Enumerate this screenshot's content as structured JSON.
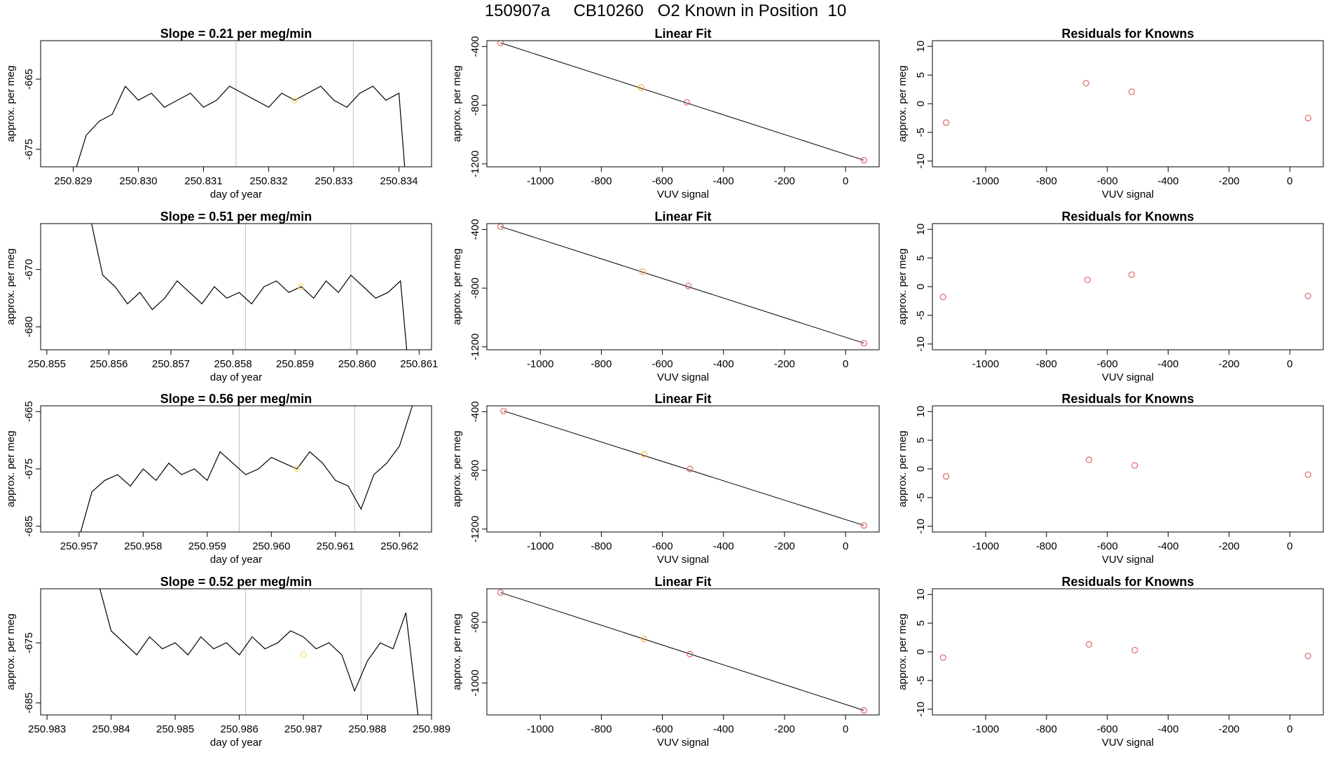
{
  "title": "150907a     CB10260   O2 Known in Position  10",
  "colors": {
    "frame": "#000000",
    "line": "#000000",
    "vline": "#bebebe",
    "known_point": "#e06666",
    "sample_point": "#f5b041",
    "yellow_marker": "#ffd966"
  },
  "chart_data": [
    {
      "type": "line",
      "title": "Slope =  0.21  per meg/min",
      "xlabel": "day of year",
      "ylabel": "approx. per meg",
      "xlim": [
        250.8285,
        250.8345
      ],
      "ylim": [
        -677.5,
        -659.5
      ],
      "xticks": [
        250.829,
        250.83,
        250.831,
        250.832,
        250.833,
        250.834
      ],
      "xtick_labels": [
        "250.829",
        "250.830",
        "250.831",
        "250.832",
        "250.833",
        "250.834"
      ],
      "yticks": [
        -665,
        -675
      ],
      "ytick_labels": [
        "-665",
        "-675"
      ],
      "vlines": [
        250.8315,
        250.8333
      ],
      "marker": {
        "x": 250.8324,
        "y": -668.0
      },
      "series": [
        {
          "x": [
            250.829,
            250.8292,
            250.8294,
            250.8296,
            250.8298,
            250.83,
            250.8302,
            250.8304,
            250.8306,
            250.8308,
            250.831,
            250.8312,
            250.8314,
            250.8316,
            250.8318,
            250.832,
            250.8322,
            250.8324,
            250.8326,
            250.8328,
            250.833,
            250.8332,
            250.8334,
            250.8336,
            250.8338,
            250.834,
            250.8341
          ],
          "y": [
            -679,
            -673,
            -671,
            -670,
            -666,
            -668,
            -667,
            -669,
            -668,
            -667,
            -669,
            -668,
            -666,
            -667,
            -668,
            -669,
            -667,
            -668,
            -667,
            -666,
            -668,
            -669,
            -667,
            -666,
            -668,
            -667,
            -679
          ]
        }
      ]
    },
    {
      "type": "scatter",
      "title": "Linear Fit",
      "xlabel": "VUV signal",
      "ylabel": "approx. per meg",
      "xlim": [
        -1175,
        110
      ],
      "ylim": [
        -1220,
        -360
      ],
      "xticks": [
        -1000,
        -800,
        -600,
        -400,
        -200,
        0
      ],
      "xtick_labels": [
        "-1000",
        "-800",
        "-600",
        "-400",
        "-200",
        "0"
      ],
      "yticks": [
        -400,
        -800,
        -1200
      ],
      "ytick_labels": [
        "-400",
        "-800",
        "-1200"
      ],
      "fit_line": {
        "x": [
          -1130,
          60
        ],
        "y": [
          -375,
          -1175
        ]
      },
      "points": {
        "x": [
          -1130,
          -670,
          -520,
          60
        ],
        "y": [
          -375,
          -680,
          -780,
          -1175
        ],
        "kind": [
          "known",
          "sample",
          "known",
          "known"
        ]
      }
    },
    {
      "type": "scatter",
      "title": "Residuals for Knowns",
      "xlabel": "VUV signal",
      "ylabel": "approx. per meg",
      "xlim": [
        -1175,
        110
      ],
      "ylim": [
        -11,
        11
      ],
      "xticks": [
        -1000,
        -800,
        -600,
        -400,
        -200,
        0
      ],
      "xtick_labels": [
        "-1000",
        "-800",
        "-600",
        "-400",
        "-200",
        "0"
      ],
      "yticks": [
        10,
        5,
        0,
        -5,
        -10
      ],
      "ytick_labels": [
        "10",
        "5",
        "0",
        "-5",
        "-10"
      ],
      "points": {
        "x": [
          -1130,
          -670,
          -520,
          60
        ],
        "y": [
          -3.3,
          3.6,
          2.1,
          -2.5
        ]
      }
    },
    {
      "type": "line",
      "title": "Slope =  0.51  per meg/min",
      "xlabel": "day of year",
      "ylabel": "approx. per meg",
      "xlim": [
        250.8549,
        250.8612
      ],
      "ylim": [
        -684,
        -662
      ],
      "xticks": [
        250.855,
        250.856,
        250.857,
        250.858,
        250.859,
        250.86,
        250.861
      ],
      "xtick_labels": [
        "250.855",
        "250.856",
        "250.857",
        "250.858",
        "250.859",
        "250.860",
        "250.861"
      ],
      "yticks": [
        -670,
        -680
      ],
      "ytick_labels": [
        "-670",
        "-680"
      ],
      "vlines": [
        250.8582,
        250.8599
      ],
      "marker": {
        "x": 250.8591,
        "y": -673.0
      },
      "series": [
        {
          "x": [
            250.8557,
            250.8559,
            250.8561,
            250.8563,
            250.8565,
            250.8567,
            250.8569,
            250.8571,
            250.8573,
            250.8575,
            250.8577,
            250.8579,
            250.8581,
            250.8583,
            250.8585,
            250.8587,
            250.8589,
            250.8591,
            250.8593,
            250.8595,
            250.8597,
            250.8599,
            250.8601,
            250.8603,
            250.8605,
            250.8607,
            250.8608
          ],
          "y": [
            -661,
            -671,
            -673,
            -676,
            -674,
            -677,
            -675,
            -672,
            -674,
            -676,
            -673,
            -675,
            -674,
            -676,
            -673,
            -672,
            -674,
            -673,
            -675,
            -672,
            -674,
            -671,
            -673,
            -675,
            -674,
            -672,
            -684
          ]
        }
      ]
    },
    {
      "type": "scatter",
      "title": "Linear Fit",
      "xlabel": "VUV signal",
      "ylabel": "approx. per meg",
      "xlim": [
        -1175,
        110
      ],
      "ylim": [
        -1220,
        -360
      ],
      "xticks": [
        -1000,
        -800,
        -600,
        -400,
        -200,
        0
      ],
      "xtick_labels": [
        "-1000",
        "-800",
        "-600",
        "-400",
        "-200",
        "0"
      ],
      "yticks": [
        -400,
        -800,
        -1200
      ],
      "ytick_labels": [
        "-400",
        "-800",
        "-1200"
      ],
      "fit_line": {
        "x": [
          -1130,
          60
        ],
        "y": [
          -380,
          -1175
        ]
      },
      "points": {
        "x": [
          -1130,
          -665,
          -515,
          60
        ],
        "y": [
          -380,
          -688,
          -785,
          -1175
        ],
        "kind": [
          "known",
          "sample",
          "known",
          "known"
        ]
      }
    },
    {
      "type": "scatter",
      "title": "Residuals for Knowns",
      "xlabel": "VUV signal",
      "ylabel": "approx. per meg",
      "xlim": [
        -1175,
        110
      ],
      "ylim": [
        -11,
        11
      ],
      "xticks": [
        -1000,
        -800,
        -600,
        -400,
        -200,
        0
      ],
      "xtick_labels": [
        "-1000",
        "-800",
        "-600",
        "-400",
        "-200",
        "0"
      ],
      "yticks": [
        10,
        5,
        0,
        -5,
        -10
      ],
      "ytick_labels": [
        "10",
        "5",
        "0",
        "-5",
        "-10"
      ],
      "points": {
        "x": [
          -1140,
          -665,
          -520,
          60
        ],
        "y": [
          -1.8,
          1.2,
          2.1,
          -1.6
        ]
      }
    },
    {
      "type": "line",
      "title": "Slope =  0.56  per meg/min",
      "xlabel": "day of year",
      "ylabel": "approx. per meg",
      "xlim": [
        250.9564,
        250.9625
      ],
      "ylim": [
        -686,
        -664
      ],
      "xticks": [
        250.957,
        250.958,
        250.959,
        250.96,
        250.961,
        250.962
      ],
      "xtick_labels": [
        "250.957",
        "250.958",
        "250.959",
        "250.960",
        "250.961",
        "250.962"
      ],
      "yticks": [
        -665,
        -675,
        -685
      ],
      "ytick_labels": [
        "-665",
        "-675",
        "-685"
      ],
      "vlines": [
        250.9595,
        250.9613
      ],
      "marker": {
        "x": 250.9604,
        "y": -675.0
      },
      "series": [
        {
          "x": [
            250.957,
            250.9572,
            250.9574,
            250.9576,
            250.9578,
            250.958,
            250.9582,
            250.9584,
            250.9586,
            250.9588,
            250.959,
            250.9592,
            250.9594,
            250.9596,
            250.9598,
            250.96,
            250.9602,
            250.9604,
            250.9606,
            250.9608,
            250.961,
            250.9612,
            250.9614,
            250.9616,
            250.9618,
            250.962,
            250.9622
          ],
          "y": [
            -687,
            -679,
            -677,
            -676,
            -678,
            -675,
            -677,
            -674,
            -676,
            -675,
            -677,
            -672,
            -674,
            -676,
            -675,
            -673,
            -674,
            -675,
            -672,
            -674,
            -677,
            -678,
            -682,
            -676,
            -674,
            -671,
            -664
          ]
        }
      ]
    },
    {
      "type": "scatter",
      "title": "Linear Fit",
      "xlabel": "VUV signal",
      "ylabel": "approx. per meg",
      "xlim": [
        -1175,
        110
      ],
      "ylim": [
        -1220,
        -360
      ],
      "xticks": [
        -1000,
        -800,
        -600,
        -400,
        -200,
        0
      ],
      "xtick_labels": [
        "-1000",
        "-800",
        "-600",
        "-400",
        "-200",
        "0"
      ],
      "yticks": [
        -400,
        -800,
        -1200
      ],
      "ytick_labels": [
        "-400",
        "-800",
        "-1200"
      ],
      "fit_line": {
        "x": [
          -1120,
          60
        ],
        "y": [
          -395,
          -1175
        ]
      },
      "points": {
        "x": [
          -1120,
          -660,
          -510,
          60
        ],
        "y": [
          -395,
          -690,
          -790,
          -1175
        ],
        "kind": [
          "known",
          "sample",
          "known",
          "known"
        ]
      }
    },
    {
      "type": "scatter",
      "title": "Residuals for Knowns",
      "xlabel": "VUV signal",
      "ylabel": "approx. per meg",
      "xlim": [
        -1175,
        110
      ],
      "ylim": [
        -11,
        11
      ],
      "xticks": [
        -1000,
        -800,
        -600,
        -400,
        -200,
        0
      ],
      "xtick_labels": [
        "-1000",
        "-800",
        "-600",
        "-400",
        "-200",
        "0"
      ],
      "yticks": [
        10,
        5,
        0,
        -5,
        -10
      ],
      "ytick_labels": [
        "10",
        "5",
        "0",
        "-5",
        "-10"
      ],
      "points": {
        "x": [
          -1130,
          -660,
          -510,
          60
        ],
        "y": [
          -1.3,
          1.6,
          0.6,
          -1.0
        ]
      }
    },
    {
      "type": "line",
      "title": "Slope =  0.52  per meg/min",
      "xlabel": "day of year",
      "ylabel": "approx. per meg",
      "xlim": [
        250.9829,
        250.989
      ],
      "ylim": [
        -687,
        -666
      ],
      "xticks": [
        250.983,
        250.984,
        250.985,
        250.986,
        250.987,
        250.988,
        250.989
      ],
      "xtick_labels": [
        "250.983",
        "250.984",
        "250.985",
        "250.986",
        "250.987",
        "250.988",
        "250.989"
      ],
      "yticks": [
        -675,
        -685
      ],
      "ytick_labels": [
        "-675",
        "-685"
      ],
      "vlines": [
        250.9861,
        250.9879
      ],
      "marker": {
        "x": 250.987,
        "y": -677.0
      },
      "series": [
        {
          "x": [
            250.9838,
            250.984,
            250.9842,
            250.9844,
            250.9846,
            250.9848,
            250.985,
            250.9852,
            250.9854,
            250.9856,
            250.9858,
            250.986,
            250.9862,
            250.9864,
            250.9866,
            250.9868,
            250.987,
            250.9872,
            250.9874,
            250.9876,
            250.9878,
            250.988,
            250.9882,
            250.9884,
            250.9886,
            250.9888
          ],
          "y": [
            -665,
            -673,
            -675,
            -677,
            -674,
            -676,
            -675,
            -677,
            -674,
            -676,
            -675,
            -677,
            -674,
            -676,
            -675,
            -673,
            -674,
            -676,
            -675,
            -677,
            -683,
            -678,
            -675,
            -676,
            -670,
            -688
          ]
        }
      ]
    },
    {
      "type": "scatter",
      "title": "Linear Fit",
      "xlabel": "VUV signal",
      "ylabel": "approx. per meg",
      "xlim": [
        -1175,
        110
      ],
      "ylim": [
        -1210,
        -380
      ],
      "xticks": [
        -1000,
        -800,
        -600,
        -400,
        -200,
        0
      ],
      "xtick_labels": [
        "-1000",
        "-800",
        "-600",
        "-400",
        "-200",
        "0"
      ],
      "yticks": [
        -600,
        -1000
      ],
      "ytick_labels": [
        "-600",
        "-1000"
      ],
      "fit_line": {
        "x": [
          -1130,
          60
        ],
        "y": [
          -405,
          -1180
        ]
      },
      "points": {
        "x": [
          -1130,
          -660,
          -510,
          60
        ],
        "y": [
          -405,
          -710,
          -810,
          -1180
        ],
        "kind": [
          "known",
          "sample",
          "known",
          "known"
        ]
      }
    },
    {
      "type": "scatter",
      "title": "Residuals for Knowns",
      "xlabel": "VUV signal",
      "ylabel": "approx. per meg",
      "xlim": [
        -1175,
        110
      ],
      "ylim": [
        -11,
        11
      ],
      "xticks": [
        -1000,
        -800,
        -600,
        -400,
        -200,
        0
      ],
      "xtick_labels": [
        "-1000",
        "-800",
        "-600",
        "-400",
        "-200",
        "0"
      ],
      "yticks": [
        10,
        5,
        0,
        -5,
        -10
      ],
      "points": {
        "x": [
          -1140,
          -660,
          -510,
          60
        ],
        "y": [
          -1.0,
          1.3,
          0.3,
          -0.7
        ]
      },
      "ytick_labels": [
        "10",
        "5",
        "0",
        "-5",
        "-10"
      ]
    }
  ]
}
